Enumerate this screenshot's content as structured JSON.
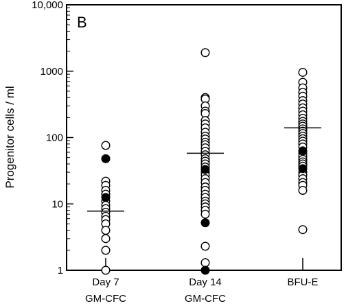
{
  "chart_data": {
    "type": "scatter",
    "panel_label": "B",
    "ylabel": "Progenitor cells / ml",
    "y_scale": "log",
    "ylim": [
      1,
      10000
    ],
    "y_ticks": [
      {
        "value": 1,
        "label": "1"
      },
      {
        "value": 10,
        "label": "10"
      },
      {
        "value": 100,
        "label": "100"
      },
      {
        "value": 1000,
        "label": "1000"
      },
      {
        "value": 10000,
        "label": "10,000"
      }
    ],
    "categories": [
      {
        "line1": "Day 7",
        "line2": "GM-CFC"
      },
      {
        "line1": "Day 14",
        "line2": "GM-CFC"
      },
      {
        "line1": "BFU-E",
        "line2": ""
      }
    ],
    "groups": [
      {
        "median": 7.8,
        "open_points": [
          76,
          22,
          19,
          16,
          14,
          11,
          9.5,
          8.5,
          7.5,
          6.5,
          5.8,
          5,
          4,
          3,
          2,
          1
        ],
        "filled_points": [
          48,
          12.5
        ]
      },
      {
        "median": 58,
        "open_points": [
          1900,
          400,
          380,
          300,
          250,
          230,
          180,
          160,
          140,
          120,
          105,
          95,
          85,
          78,
          70,
          62,
          55,
          48,
          44,
          40,
          36,
          30,
          27,
          24,
          21,
          18,
          16,
          14,
          12.5,
          11,
          10,
          9,
          8,
          7,
          2.3,
          1.3
        ],
        "filled_points": [
          33,
          5.2,
          1
        ]
      },
      {
        "median": 140,
        "open_points": [
          960,
          680,
          560,
          480,
          420,
          360,
          320,
          280,
          250,
          220,
          195,
          175,
          160,
          148,
          135,
          125,
          115,
          105,
          96,
          88,
          80,
          72,
          58,
          52,
          47,
          43,
          40,
          37,
          30,
          27,
          24,
          21,
          19,
          16,
          4.1
        ],
        "filled_points": [
          63,
          34
        ]
      }
    ]
  }
}
